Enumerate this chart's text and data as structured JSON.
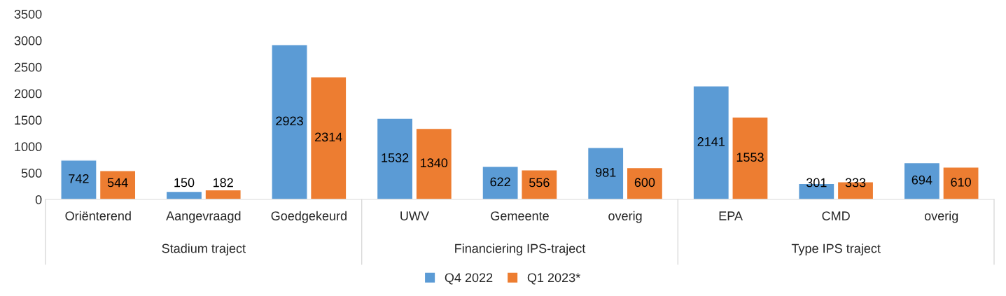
{
  "chart_data": {
    "type": "bar",
    "categories": [
      "Oriënterend",
      "Aangevraagd",
      "Goedgekeurd",
      "UWV",
      "Gemeente",
      "overig",
      "EPA",
      "CMD",
      "overig"
    ],
    "series": [
      {
        "name": "Q4 2022",
        "color": "#5b9bd5",
        "values": [
          742,
          150,
          2923,
          1532,
          622,
          981,
          2141,
          301,
          694
        ]
      },
      {
        "name": "Q1 2023*",
        "color": "#ed7d31",
        "values": [
          544,
          182,
          2314,
          1340,
          556,
          600,
          1553,
          333,
          610
        ]
      }
    ],
    "annotations": [
      "Stadium traject",
      "Financiering IPS-traject",
      "Type IPS traject"
    ],
    "ylim": [
      0,
      3500
    ],
    "yticks": [
      0,
      500,
      1000,
      1500,
      2000,
      2500,
      3000,
      3500
    ],
    "data_labels": true,
    "grid": false,
    "legend": "bottom"
  }
}
